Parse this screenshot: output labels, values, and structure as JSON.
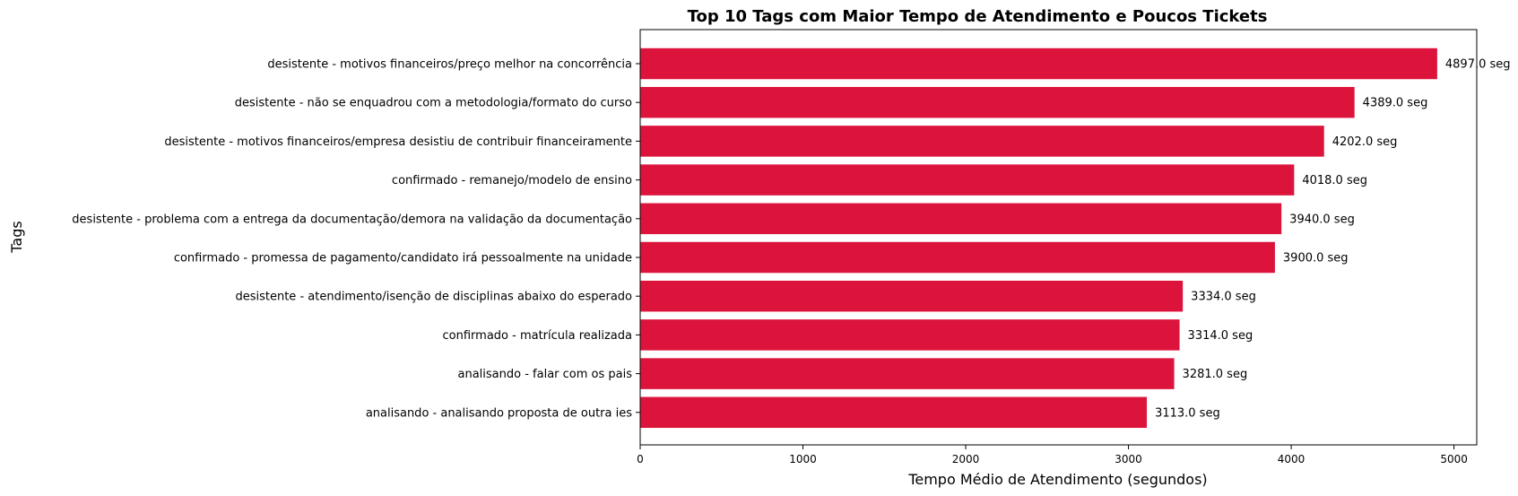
{
  "chart_data": {
    "type": "bar",
    "orientation": "horizontal",
    "title": "Top 10 Tags com Maior Tempo de Atendimento e Poucos Tickets",
    "xlabel": "Tempo Médio de Atendimento (segundos)",
    "ylabel": "Tags",
    "xlim": [
      0,
      5140
    ],
    "xticks": [
      "0",
      "1000",
      "2000",
      "3000",
      "4000",
      "5000"
    ],
    "value_suffix": " seg",
    "color": "#dc143c",
    "grid": false,
    "categories": [
      "desistente - motivos financeiros/preço melhor na concorrência",
      "desistente - não se enquadrou com a metodologia/formato do curso",
      "desistente - motivos financeiros/empresa desistiu de contribuir financeiramente",
      "confirmado - remanejo/modelo de ensino",
      "desistente - problema com a entrega da documentação/demora na validação da documentação",
      "confirmado - promessa de pagamento/candidato irá pessoalmente na unidade",
      "desistente - atendimento/isenção de disciplinas abaixo do esperado",
      "confirmado - matrícula realizada",
      "analisando - falar com os pais",
      "analisando - analisando proposta de outra ies"
    ],
    "values": [
      4897.0,
      4389.0,
      4202.0,
      4018.0,
      3940.0,
      3900.0,
      3334.0,
      3314.0,
      3281.0,
      3113.0
    ],
    "value_labels": [
      "4897.0 seg",
      "4389.0 seg",
      "4202.0 seg",
      "4018.0 seg",
      "3940.0 seg",
      "3900.0 seg",
      "3334.0 seg",
      "3314.0 seg",
      "3281.0 seg",
      "3113.0 seg"
    ]
  }
}
